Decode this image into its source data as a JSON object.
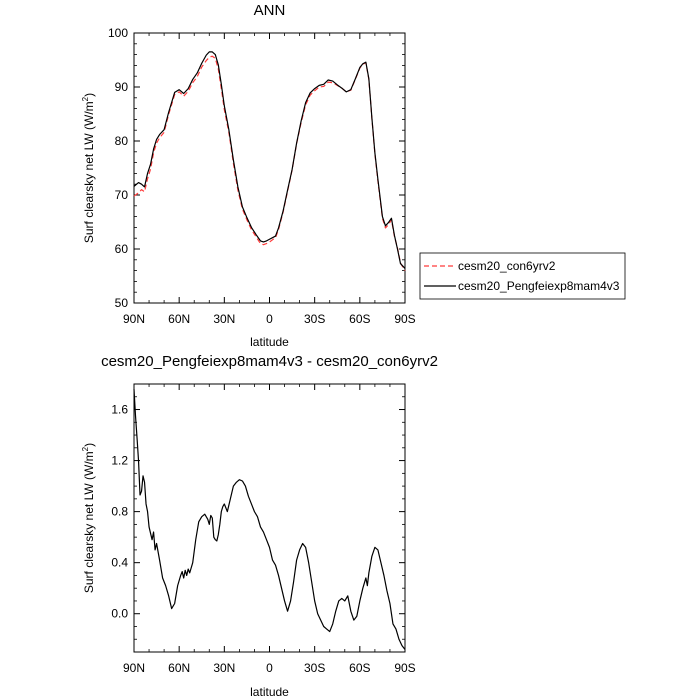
{
  "colors": {
    "control": "#ff3b3b",
    "experiment": "#000000",
    "axis": "#000000"
  },
  "chart_data": [
    {
      "type": "line",
      "title": "ANN",
      "xlabel": "latitude",
      "ylabel": "Surf clearsky net LW (W/m",
      "ylabel_superscript": "2",
      "ylabel_suffix": ")",
      "xlim": [
        90,
        -90
      ],
      "ylim": [
        50,
        100
      ],
      "xticks": [
        90,
        60,
        30,
        0,
        -30,
        -60,
        -90
      ],
      "xtick_labels": [
        "90N",
        "60N",
        "30N",
        "0",
        "30S",
        "60S",
        "90S"
      ],
      "yticks": [
        50,
        60,
        70,
        80,
        90,
        100
      ],
      "ytick_labels": [
        "50",
        "60",
        "70",
        "80",
        "90",
        "100"
      ],
      "legend_placement": "right",
      "series": [
        {
          "name": "cesm20_con6yrv2",
          "style": "dashed",
          "color": "#ff3b3b",
          "x": [
            90,
            87,
            85,
            83,
            81,
            79,
            77,
            75,
            73,
            70,
            67,
            63,
            60,
            57,
            54,
            51,
            48,
            45,
            42,
            40,
            38,
            36,
            34,
            32,
            30,
            27,
            24,
            21,
            18,
            15,
            12,
            9,
            6,
            4,
            2,
            0,
            -2,
            -4,
            -6,
            -9,
            -12,
            -15,
            -18,
            -21,
            -24,
            -27,
            -30,
            -33,
            -36,
            -39,
            -42,
            -45,
            -48,
            -51,
            -54,
            -57,
            -60,
            -62,
            -64,
            -66,
            -68,
            -70,
            -72,
            -75,
            -77,
            -79,
            -81,
            -83,
            -85,
            -87,
            -90
          ],
          "values": [
            69.8,
            70.4,
            71.0,
            70.6,
            73.0,
            74.8,
            77.8,
            79.6,
            80.6,
            81.6,
            84.9,
            88.6,
            89.1,
            88.3,
            89.2,
            90.8,
            91.9,
            93.7,
            94.9,
            95.5,
            95.7,
            95.3,
            93.3,
            89.7,
            85.8,
            81.6,
            75.9,
            70.9,
            67.4,
            65.4,
            63.6,
            62.3,
            61.0,
            60.8,
            61.0,
            61.3,
            61.7,
            62.1,
            63.6,
            66.8,
            70.7,
            74.6,
            79.5,
            83.4,
            86.7,
            88.5,
            89.3,
            90.0,
            90.1,
            90.9,
            90.8,
            90.3,
            89.8,
            89.1,
            89.4,
            91.4,
            93.5,
            94.2,
            94.5,
            91.4,
            84.2,
            77.6,
            72.6,
            65.7,
            63.9,
            64.5,
            65.4,
            62.3,
            60.2,
            57.4,
            56.0
          ]
        },
        {
          "name": "cesm20_Pengfeiexp8mam4v3",
          "style": "solid",
          "color": "#000000",
          "x": [
            90,
            87,
            85,
            83,
            81,
            79,
            77,
            75,
            73,
            70,
            67,
            63,
            60,
            57,
            54,
            51,
            48,
            45,
            42,
            40,
            38,
            36,
            34,
            32,
            30,
            27,
            24,
            21,
            18,
            15,
            12,
            9,
            6,
            4,
            2,
            0,
            -2,
            -4,
            -6,
            -9,
            -12,
            -15,
            -18,
            -21,
            -24,
            -27,
            -30,
            -33,
            -36,
            -39,
            -42,
            -45,
            -48,
            -51,
            -54,
            -57,
            -60,
            -62,
            -64,
            -66,
            -68,
            -70,
            -72,
            -75,
            -77,
            -79,
            -81,
            -83,
            -85,
            -87,
            -90
          ],
          "values": [
            71.6,
            72.3,
            72.0,
            71.5,
            74.0,
            75.7,
            78.5,
            80.3,
            81.2,
            82.1,
            85.3,
            89.0,
            89.5,
            88.8,
            89.7,
            91.4,
            92.6,
            94.4,
            95.9,
            96.5,
            96.5,
            96.0,
            94.1,
            90.5,
            86.5,
            82.1,
            76.5,
            71.5,
            67.8,
            65.8,
            64.0,
            62.7,
            61.5,
            61.3,
            61.5,
            61.8,
            62.1,
            62.4,
            63.9,
            67.0,
            70.9,
            74.7,
            79.6,
            83.7,
            87.1,
            88.9,
            89.7,
            90.3,
            90.5,
            91.3,
            91.1,
            90.4,
            89.8,
            89.1,
            89.5,
            91.5,
            93.6,
            94.3,
            94.6,
            91.5,
            84.3,
            77.8,
            72.9,
            66.0,
            64.3,
            64.9,
            65.7,
            62.5,
            60.0,
            57.3,
            56.4
          ]
        }
      ]
    },
    {
      "type": "line",
      "title": "cesm20_Pengfeiexp8mam4v3 - cesm20_con6yrv2",
      "xlabel": "latitude",
      "ylabel": "Surf clearsky net LW (W/m",
      "ylabel_superscript": "2",
      "ylabel_suffix": ")",
      "xlim": [
        90,
        -90
      ],
      "ylim": [
        -0.3,
        1.8
      ],
      "xticks": [
        90,
        60,
        30,
        0,
        -30,
        -60,
        -90
      ],
      "xtick_labels": [
        "90N",
        "60N",
        "30N",
        "0",
        "30S",
        "60S",
        "90S"
      ],
      "yticks": [
        0.0,
        0.4,
        0.8,
        1.2,
        1.6
      ],
      "ytick_labels": [
        "0.0",
        "0.4",
        "0.8",
        "1.2",
        "1.6"
      ],
      "series": [
        {
          "style": "solid",
          "color": "#000000",
          "x": [
            90,
            89,
            88,
            87,
            86,
            85,
            84,
            83,
            82,
            81,
            80,
            79,
            78,
            77,
            76,
            75,
            73,
            71,
            69,
            67,
            65,
            63,
            61,
            59,
            58,
            57,
            56,
            55,
            54,
            53,
            51,
            49,
            47,
            45,
            43,
            41,
            40,
            39,
            38,
            37,
            36,
            35,
            34,
            33,
            32,
            31,
            30,
            28,
            26,
            24,
            22,
            20,
            18,
            16,
            14,
            12,
            10,
            8,
            6,
            4,
            2,
            0,
            -2,
            -4,
            -6,
            -8,
            -10,
            -12,
            -14,
            -16,
            -18,
            -20,
            -22,
            -24,
            -26,
            -28,
            -30,
            -32,
            -34,
            -36,
            -38,
            -40,
            -42,
            -44,
            -46,
            -48,
            -50,
            -52,
            -54,
            -56,
            -58,
            -60,
            -62,
            -64,
            -65,
            -66,
            -68,
            -70,
            -72,
            -74,
            -76,
            -78,
            -80,
            -82,
            -84,
            -86,
            -88,
            -90
          ],
          "values": [
            1.76,
            1.55,
            1.38,
            1.2,
            0.93,
            0.96,
            1.08,
            1.03,
            0.86,
            0.8,
            0.68,
            0.63,
            0.58,
            0.64,
            0.5,
            0.55,
            0.42,
            0.28,
            0.22,
            0.14,
            0.04,
            0.08,
            0.22,
            0.3,
            0.33,
            0.28,
            0.34,
            0.3,
            0.35,
            0.32,
            0.4,
            0.58,
            0.72,
            0.76,
            0.78,
            0.74,
            0.7,
            0.77,
            0.75,
            0.6,
            0.58,
            0.57,
            0.62,
            0.7,
            0.8,
            0.84,
            0.86,
            0.8,
            0.9,
            1.0,
            1.03,
            1.05,
            1.04,
            1.0,
            0.92,
            0.86,
            0.8,
            0.76,
            0.68,
            0.64,
            0.58,
            0.52,
            0.42,
            0.38,
            0.3,
            0.2,
            0.1,
            0.02,
            0.1,
            0.25,
            0.42,
            0.5,
            0.55,
            0.52,
            0.4,
            0.25,
            0.1,
            0.0,
            -0.05,
            -0.1,
            -0.12,
            -0.14,
            -0.08,
            0.02,
            0.1,
            0.12,
            0.1,
            0.14,
            0.02,
            -0.05,
            -0.02,
            0.1,
            0.2,
            0.28,
            0.22,
            0.32,
            0.45,
            0.52,
            0.5,
            0.4,
            0.3,
            0.18,
            0.08,
            -0.08,
            -0.12,
            -0.2,
            -0.25,
            -0.28
          ]
        }
      ]
    }
  ]
}
